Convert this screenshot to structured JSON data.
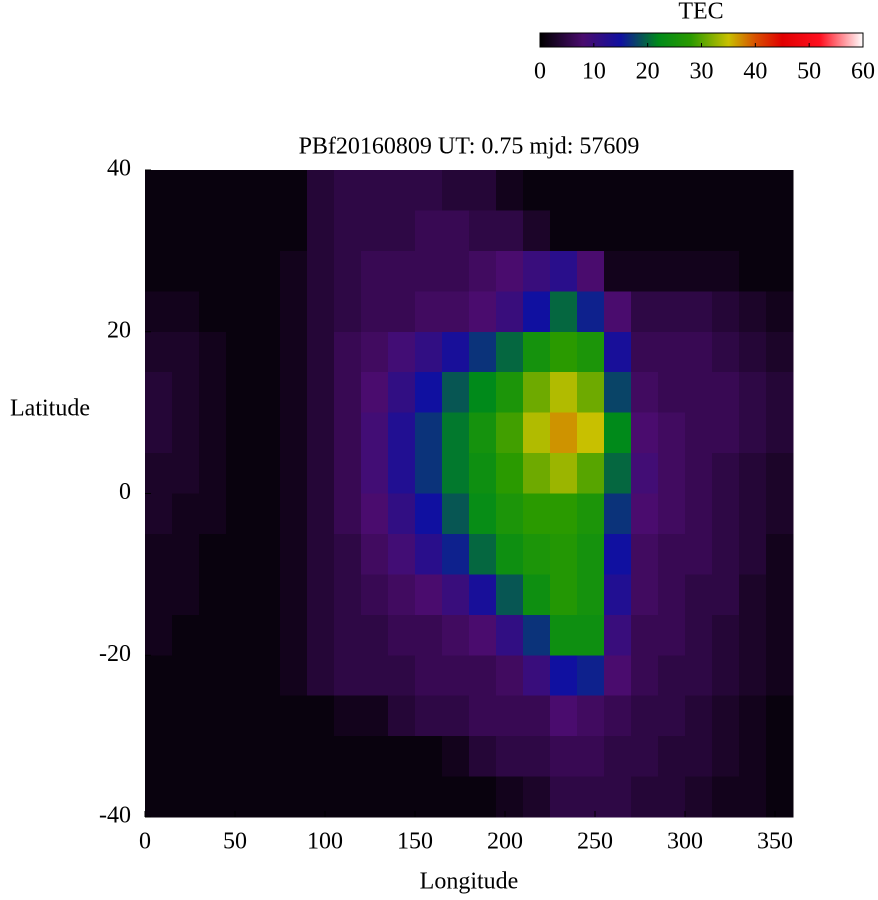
{
  "chart_data": {
    "type": "heatmap",
    "title": "PBf20160809  UT: 0.75  mjd: 57609",
    "x_label": "Longitude",
    "y_label": "Latitude",
    "colorbar_label": "TEC",
    "xlim": [
      0,
      360
    ],
    "xticks": [
      0,
      50,
      100,
      150,
      200,
      250,
      300,
      350
    ],
    "ylim": [
      -40,
      40
    ],
    "yticks": [
      -40,
      -20,
      0,
      20,
      40
    ],
    "clim": [
      0,
      60
    ],
    "cticks": [
      0,
      10,
      20,
      30,
      40,
      50,
      60
    ],
    "colorscale": [
      [
        0,
        "#000000"
      ],
      [
        8,
        "#4a0c6e"
      ],
      [
        15,
        "#1010a0"
      ],
      [
        22,
        "#008a1a"
      ],
      [
        28,
        "#2a9a00"
      ],
      [
        35,
        "#c8c000"
      ],
      [
        40,
        "#d85000"
      ],
      [
        45,
        "#e00000"
      ],
      [
        52,
        "#ff1020"
      ],
      [
        60,
        "#ffffff"
      ]
    ],
    "x": [
      7.5,
      22.5,
      37.5,
      52.5,
      67.5,
      82.5,
      97.5,
      112.5,
      127.5,
      142.5,
      157.5,
      172.5,
      187.5,
      202.5,
      217.5,
      232.5,
      247.5,
      262.5,
      277.5,
      292.5,
      307.5,
      322.5,
      337.5,
      352.5
    ],
    "y": [
      37.5,
      32.5,
      27.5,
      22.5,
      17.5,
      12.5,
      7.5,
      2.5,
      -2.5,
      -7.5,
      -12.5,
      -17.5,
      -22.5,
      -27.5,
      -32.5,
      -37.5
    ],
    "values": [
      [
        1,
        1,
        1,
        1,
        1,
        1,
        4,
        5,
        5,
        5,
        5,
        4,
        4,
        2,
        1,
        1,
        1,
        1,
        1,
        1,
        1,
        1,
        1,
        1
      ],
      [
        1,
        1,
        1,
        1,
        1,
        1,
        4,
        5,
        5,
        5,
        6,
        6,
        5,
        5,
        3,
        1,
        1,
        1,
        1,
        1,
        1,
        1,
        1,
        1
      ],
      [
        1,
        1,
        1,
        1,
        1,
        2,
        4,
        5,
        6,
        6,
        6,
        6,
        7,
        8,
        10,
        12,
        8,
        2,
        2,
        2,
        2,
        2,
        1,
        1
      ],
      [
        2,
        2,
        1,
        1,
        1,
        2,
        4,
        5,
        6,
        6,
        7,
        7,
        8,
        10,
        15,
        20,
        16,
        8,
        5,
        5,
        5,
        4,
        3,
        2
      ],
      [
        3,
        3,
        2,
        1,
        1,
        2,
        4,
        6,
        7,
        9,
        11,
        14,
        17,
        20,
        25,
        28,
        26,
        14,
        6,
        6,
        6,
        5,
        4,
        3
      ],
      [
        4,
        3,
        2,
        1,
        1,
        2,
        4,
        6,
        8,
        11,
        15,
        19,
        22,
        26,
        31,
        34,
        31,
        18,
        7,
        6,
        6,
        6,
        5,
        4
      ],
      [
        4,
        3,
        2,
        1,
        1,
        2,
        4,
        6,
        9,
        13,
        17,
        21,
        25,
        29,
        34,
        37,
        35,
        22,
        8,
        7,
        6,
        6,
        5,
        4
      ],
      [
        3,
        3,
        2,
        1,
        1,
        2,
        4,
        6,
        9,
        13,
        17,
        21,
        24,
        28,
        31,
        33,
        30,
        20,
        9,
        7,
        6,
        5,
        4,
        3
      ],
      [
        3,
        2,
        2,
        1,
        1,
        2,
        4,
        6,
        8,
        11,
        15,
        19,
        23,
        26,
        28,
        28,
        26,
        17,
        8,
        7,
        6,
        5,
        4,
        3
      ],
      [
        2,
        2,
        1,
        1,
        1,
        2,
        4,
        5,
        7,
        9,
        12,
        16,
        20,
        24,
        26,
        27,
        25,
        15,
        7,
        6,
        6,
        5,
        4,
        2
      ],
      [
        2,
        2,
        1,
        1,
        1,
        2,
        4,
        5,
        6,
        7,
        8,
        10,
        14,
        19,
        24,
        27,
        25,
        13,
        7,
        6,
        5,
        5,
        3,
        2
      ],
      [
        2,
        1,
        1,
        1,
        1,
        2,
        4,
        5,
        5,
        6,
        6,
        7,
        8,
        11,
        17,
        24,
        24,
        10,
        6,
        6,
        5,
        4,
        3,
        2
      ],
      [
        1,
        1,
        1,
        1,
        1,
        2,
        4,
        5,
        5,
        5,
        6,
        6,
        6,
        7,
        10,
        15,
        16,
        8,
        6,
        5,
        5,
        4,
        3,
        2
      ],
      [
        1,
        1,
        1,
        1,
        1,
        1,
        1,
        2,
        2,
        4,
        5,
        5,
        6,
        6,
        6,
        8,
        7,
        6,
        5,
        5,
        4,
        3,
        2,
        1
      ],
      [
        1,
        1,
        1,
        1,
        1,
        1,
        1,
        1,
        1,
        1,
        1,
        2,
        4,
        5,
        5,
        6,
        6,
        5,
        5,
        4,
        4,
        3,
        2,
        1
      ],
      [
        1,
        1,
        1,
        1,
        1,
        1,
        1,
        1,
        1,
        1,
        1,
        1,
        1,
        2,
        3,
        5,
        5,
        5,
        4,
        4,
        3,
        2,
        2,
        1
      ]
    ]
  }
}
